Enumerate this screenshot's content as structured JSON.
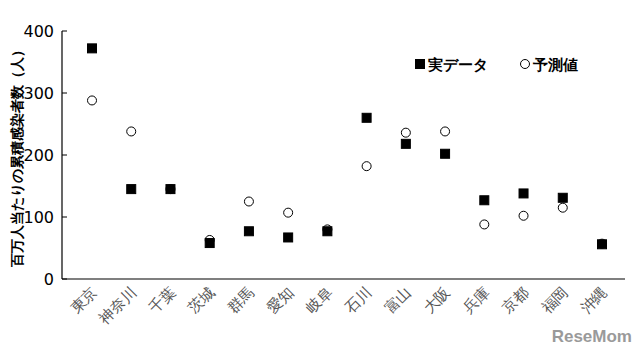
{
  "chart_data": {
    "type": "scatter",
    "y_label": "百万人当たりの累積感染者数（人）",
    "categories": [
      "東京",
      "神奈川",
      "千葉",
      "茨城",
      "群馬",
      "愛知",
      "岐阜",
      "石川",
      "富山",
      "大阪",
      "兵庫",
      "京都",
      "福岡",
      "沖縄"
    ],
    "series": [
      {
        "name": "実データ",
        "color": "#000000",
        "marker": "square",
        "values": [
          372,
          145,
          145,
          58,
          77,
          67,
          77,
          260,
          218,
          202,
          127,
          138,
          131,
          56
        ]
      },
      {
        "name": "予測値",
        "color": "#000000",
        "marker": "open-circle",
        "values": [
          288,
          238,
          145,
          63,
          125,
          107,
          80,
          182,
          236,
          238,
          88,
          102,
          115,
          57
        ]
      }
    ],
    "ylim": [
      0,
      400
    ],
    "yticks": [
      0,
      100,
      200,
      300,
      400
    ],
    "grid": false,
    "legend": "top-right",
    "annotations": [
      "ReseMom"
    ]
  }
}
